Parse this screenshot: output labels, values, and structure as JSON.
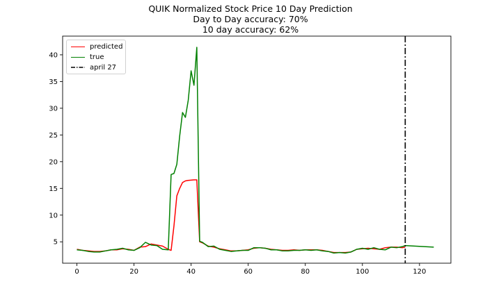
{
  "title": {
    "line1": "QUIK Normalized Stock Price 10 Day Prediction",
    "line2": "Day to Day accuracy: 70%",
    "line3": "10 day accuracy: 62%"
  },
  "legend": {
    "items": [
      {
        "label": "predicted",
        "color": "#ff0000",
        "style": "solid"
      },
      {
        "label": "true",
        "color": "#008000",
        "style": "solid"
      },
      {
        "label": "april 27",
        "color": "#000000",
        "style": "dashdot"
      }
    ],
    "placement": "upper-left"
  },
  "chart_data": {
    "type": "line",
    "xlim": [
      -5,
      131
    ],
    "ylim": [
      1,
      43.5
    ],
    "x_ticks": [
      0,
      20,
      40,
      60,
      80,
      100,
      120
    ],
    "y_ticks": [
      5,
      10,
      15,
      20,
      25,
      30,
      35,
      40
    ],
    "grid": false,
    "vline": {
      "x": 115,
      "label": "april 27"
    },
    "series": [
      {
        "name": "predicted",
        "color": "#ff0000",
        "x": [
          0,
          2,
          4,
          6,
          8,
          10,
          12,
          14,
          16,
          18,
          20,
          22,
          24,
          26,
          28,
          30,
          32,
          33,
          34,
          35,
          36,
          37,
          38,
          39,
          40,
          41,
          42,
          43,
          44,
          46,
          48,
          50,
          52,
          54,
          56,
          58,
          60,
          62,
          64,
          66,
          68,
          70,
          72,
          74,
          76,
          78,
          80,
          82,
          84,
          86,
          88,
          90,
          92,
          94,
          96,
          98,
          100,
          102,
          104,
          106,
          108,
          110,
          112,
          114,
          115
        ],
        "y": [
          3.6,
          3.4,
          3.3,
          3.2,
          3.2,
          3.3,
          3.5,
          3.5,
          3.7,
          3.6,
          3.4,
          4.0,
          4.1,
          4.6,
          4.4,
          4.2,
          3.6,
          3.4,
          8.0,
          13.6,
          15.0,
          16.1,
          16.4,
          16.5,
          16.55,
          16.6,
          16.6,
          5.0,
          4.8,
          4.2,
          4.0,
          3.7,
          3.5,
          3.3,
          3.3,
          3.4,
          3.5,
          3.8,
          3.9,
          3.8,
          3.6,
          3.5,
          3.4,
          3.4,
          3.5,
          3.4,
          3.5,
          3.5,
          3.5,
          3.4,
          3.2,
          3.0,
          3.0,
          3.0,
          3.1,
          3.6,
          3.7,
          3.8,
          3.7,
          3.6,
          3.9,
          4.0,
          4.0,
          3.9,
          4.0
        ]
      },
      {
        "name": "true",
        "color": "#008000",
        "x": [
          0,
          2,
          4,
          6,
          8,
          10,
          12,
          14,
          16,
          18,
          20,
          22,
          24,
          26,
          28,
          30,
          32,
          33,
          34,
          35,
          36,
          37,
          38,
          39,
          40,
          41,
          42,
          43,
          44,
          46,
          48,
          50,
          52,
          54,
          56,
          58,
          60,
          62,
          64,
          66,
          68,
          70,
          72,
          74,
          76,
          78,
          80,
          82,
          84,
          86,
          88,
          90,
          92,
          94,
          96,
          98,
          100,
          102,
          104,
          106,
          108,
          110,
          112,
          114,
          115,
          125
        ],
        "y": [
          3.5,
          3.4,
          3.2,
          3.1,
          3.1,
          3.3,
          3.5,
          3.6,
          3.8,
          3.5,
          3.4,
          3.9,
          4.9,
          4.4,
          4.3,
          3.6,
          3.5,
          17.6,
          17.8,
          19.5,
          24.8,
          29.2,
          28.3,
          31.5,
          37.0,
          34.3,
          41.4,
          5.1,
          4.9,
          4.1,
          4.2,
          3.6,
          3.4,
          3.2,
          3.3,
          3.4,
          3.4,
          3.9,
          3.9,
          3.8,
          3.5,
          3.5,
          3.3,
          3.3,
          3.4,
          3.4,
          3.5,
          3.4,
          3.5,
          3.3,
          3.2,
          2.9,
          3.0,
          2.9,
          3.1,
          3.6,
          3.8,
          3.6,
          3.9,
          3.6,
          3.5,
          4.0,
          3.9,
          4.1,
          4.3,
          4.0
        ]
      }
    ]
  }
}
